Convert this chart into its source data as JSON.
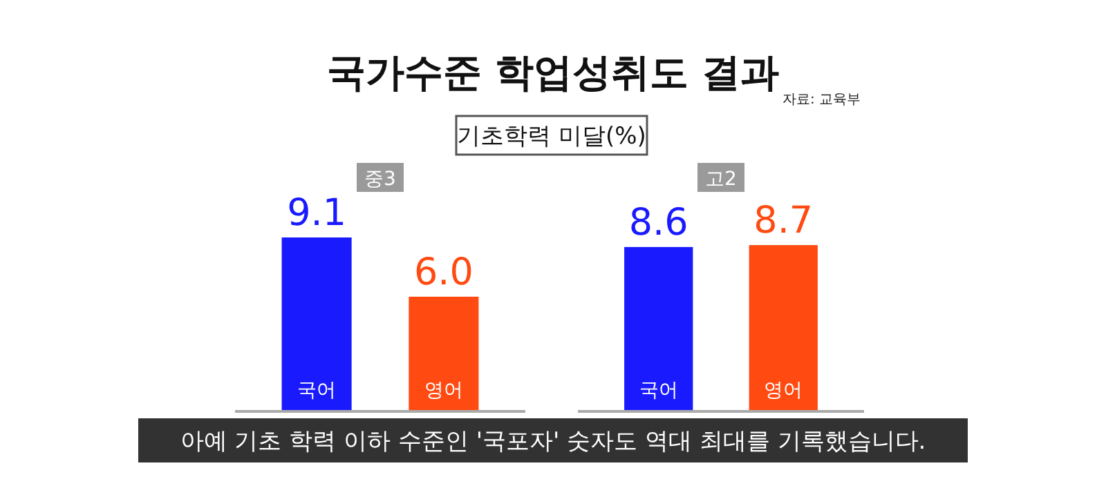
{
  "chart_data": [
    {
      "type": "bar",
      "title": "국가수준 학업성취도 결과",
      "subtitle": "기초학력 미달(%)",
      "annotations": [
        "자료: 교육부",
        "아예 기초 학력 이하 수준인 '국포자' 숫자도 역대 최대를 기록했습니다."
      ],
      "xlabel": "중3",
      "categories": [
        "국어",
        "영어"
      ],
      "values": [
        9.1,
        6.0
      ],
      "value_labels": [
        "9.1",
        "6.0"
      ],
      "colors": [
        "#1a1aff",
        "#ff4a12"
      ]
    },
    {
      "type": "bar",
      "xlabel": "고2",
      "categories": [
        "국어",
        "영어"
      ],
      "values": [
        8.6,
        8.7
      ],
      "value_labels": [
        "8.6",
        "8.7"
      ],
      "colors": [
        "#1a1aff",
        "#ff4a12"
      ]
    }
  ]
}
